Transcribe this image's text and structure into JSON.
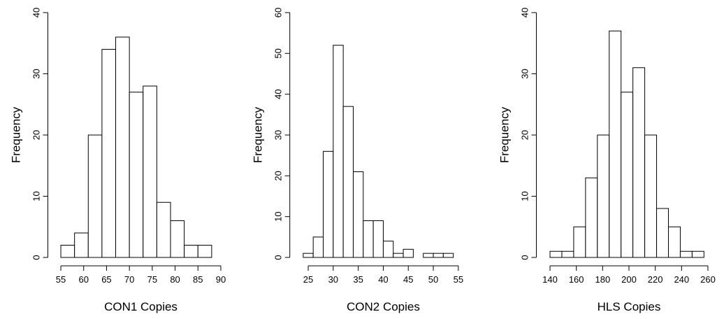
{
  "chart_data": [
    {
      "type": "histogram",
      "xlabel": "CON1 Copies",
      "ylabel": "Frequency",
      "bins": [
        55,
        58,
        61,
        64,
        67,
        70,
        73,
        76,
        79,
        82,
        85,
        88
      ],
      "values": [
        2,
        4,
        20,
        34,
        36,
        27,
        28,
        9,
        6,
        2,
        2
      ],
      "xlim": [
        54,
        91
      ],
      "xticks": [
        55,
        60,
        65,
        70,
        75,
        80,
        85,
        90
      ],
      "ylim": [
        0,
        40
      ],
      "yticks": [
        0,
        10,
        20,
        30,
        40
      ]
    },
    {
      "type": "histogram",
      "xlabel": "CON2 Copies",
      "ylabel": "Frequency",
      "bins": [
        24,
        26,
        28,
        30,
        32,
        34,
        36,
        38,
        40,
        42,
        44,
        46,
        48,
        50,
        52,
        54
      ],
      "values": [
        1,
        5,
        26,
        52,
        37,
        21,
        9,
        9,
        4,
        1,
        2,
        0,
        1,
        1,
        1
      ],
      "xlim": [
        23,
        56
      ],
      "xticks": [
        25,
        30,
        35,
        40,
        45,
        50,
        55
      ],
      "ylim": [
        0,
        60
      ],
      "yticks": [
        0,
        10,
        20,
        30,
        40,
        50,
        60
      ]
    },
    {
      "type": "histogram",
      "xlabel": "HLS Copies",
      "ylabel": "Frequency",
      "bins": [
        140,
        149,
        158,
        167,
        176,
        185,
        194,
        203,
        212,
        221,
        230,
        239,
        248,
        257
      ],
      "values": [
        1,
        1,
        5,
        13,
        20,
        37,
        27,
        31,
        20,
        8,
        5,
        1,
        1
      ],
      "xlim": [
        136,
        264
      ],
      "xticks": [
        140,
        160,
        180,
        200,
        220,
        240,
        260
      ],
      "ylim": [
        0,
        40
      ],
      "yticks": [
        0,
        10,
        20,
        30,
        40
      ]
    }
  ]
}
